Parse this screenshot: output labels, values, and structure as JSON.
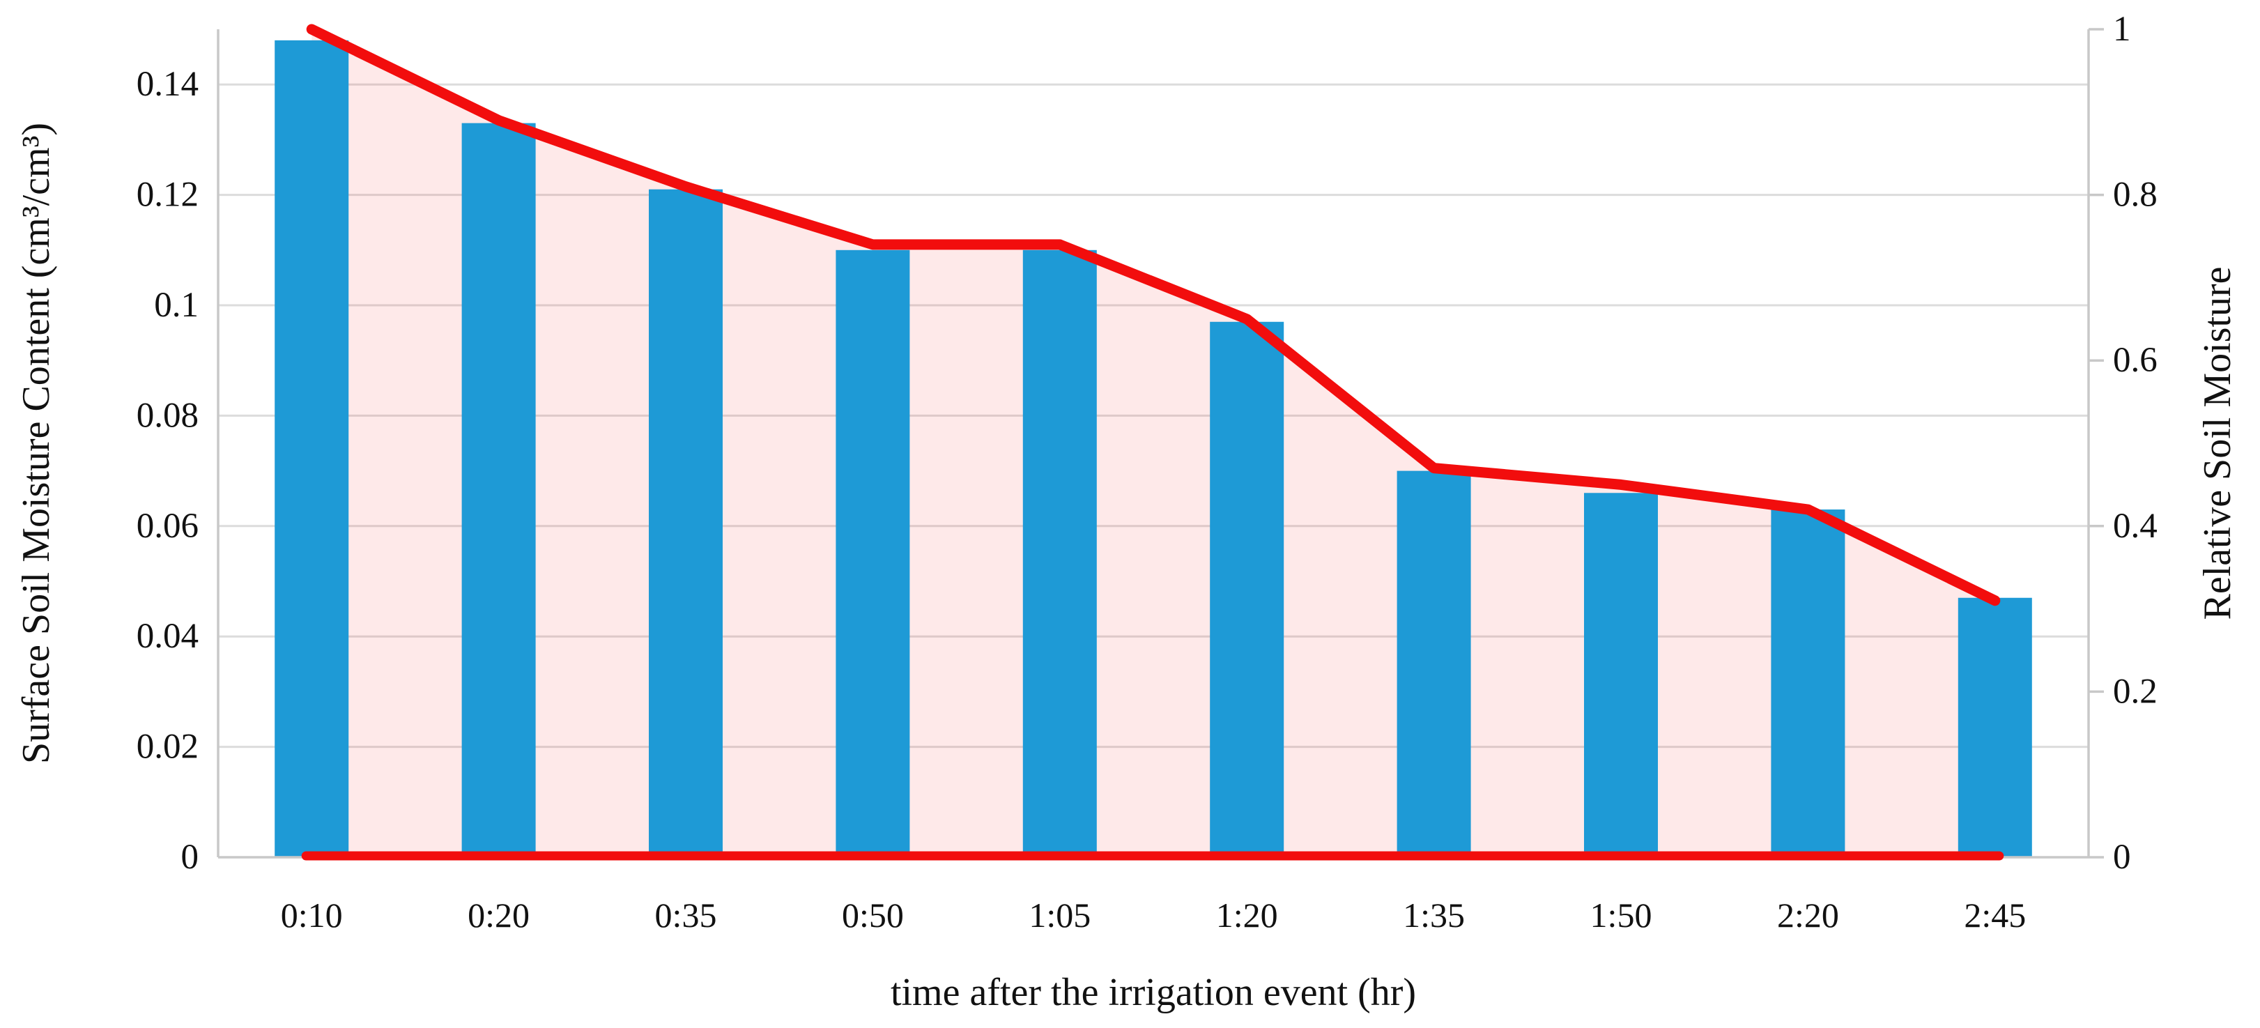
{
  "chart_data": {
    "type": "bar",
    "subtype": "combo-bar-with-area-line",
    "title": "",
    "categories": [
      "0:10",
      "0:20",
      "0:35",
      "0:50",
      "1:05",
      "1:20",
      "1:35",
      "1:50",
      "2:20",
      "2:45"
    ],
    "series": [
      {
        "name": "Surface Soil Moisture Content",
        "type": "bar",
        "axis": "left",
        "color": "#1E9AD6",
        "values": [
          0.148,
          0.133,
          0.121,
          0.11,
          0.11,
          0.097,
          0.07,
          0.066,
          0.063,
          0.047
        ]
      },
      {
        "name": "Relative Soil Moisture",
        "type": "area-line",
        "axis": "right",
        "line_color": "#F20D0D",
        "fill_color": "rgba(242,13,13,0.09)",
        "values": [
          1.0,
          0.89,
          0.81,
          0.74,
          0.74,
          0.65,
          0.47,
          0.45,
          0.42,
          0.31
        ]
      }
    ],
    "x_axis": {
      "title": "time after the irrigation event (hr)"
    },
    "left_axis": {
      "title": "Surface Soil Moisture Content (cm³/cm³)",
      "tick_labels": [
        "0",
        "0.02",
        "0.04",
        "0.06",
        "0.08",
        "0.1",
        "0.12",
        "0.14"
      ],
      "tick_values": [
        0,
        0.02,
        0.04,
        0.06,
        0.08,
        0.1,
        0.12,
        0.14
      ],
      "min": 0,
      "max": 0.15
    },
    "right_axis": {
      "title": "Relative Soil Moisture",
      "tick_labels": [
        "0",
        "0.2",
        "0.4",
        "0.6",
        "0.8",
        "1"
      ],
      "tick_values": [
        0,
        0.2,
        0.4,
        0.6,
        0.8,
        1
      ],
      "min": 0,
      "max": 1
    },
    "grid": true,
    "legend": false,
    "colors": {
      "gridline": "#DCDCDC",
      "axis_line": "#C8C8C8",
      "text": "#111111"
    }
  }
}
